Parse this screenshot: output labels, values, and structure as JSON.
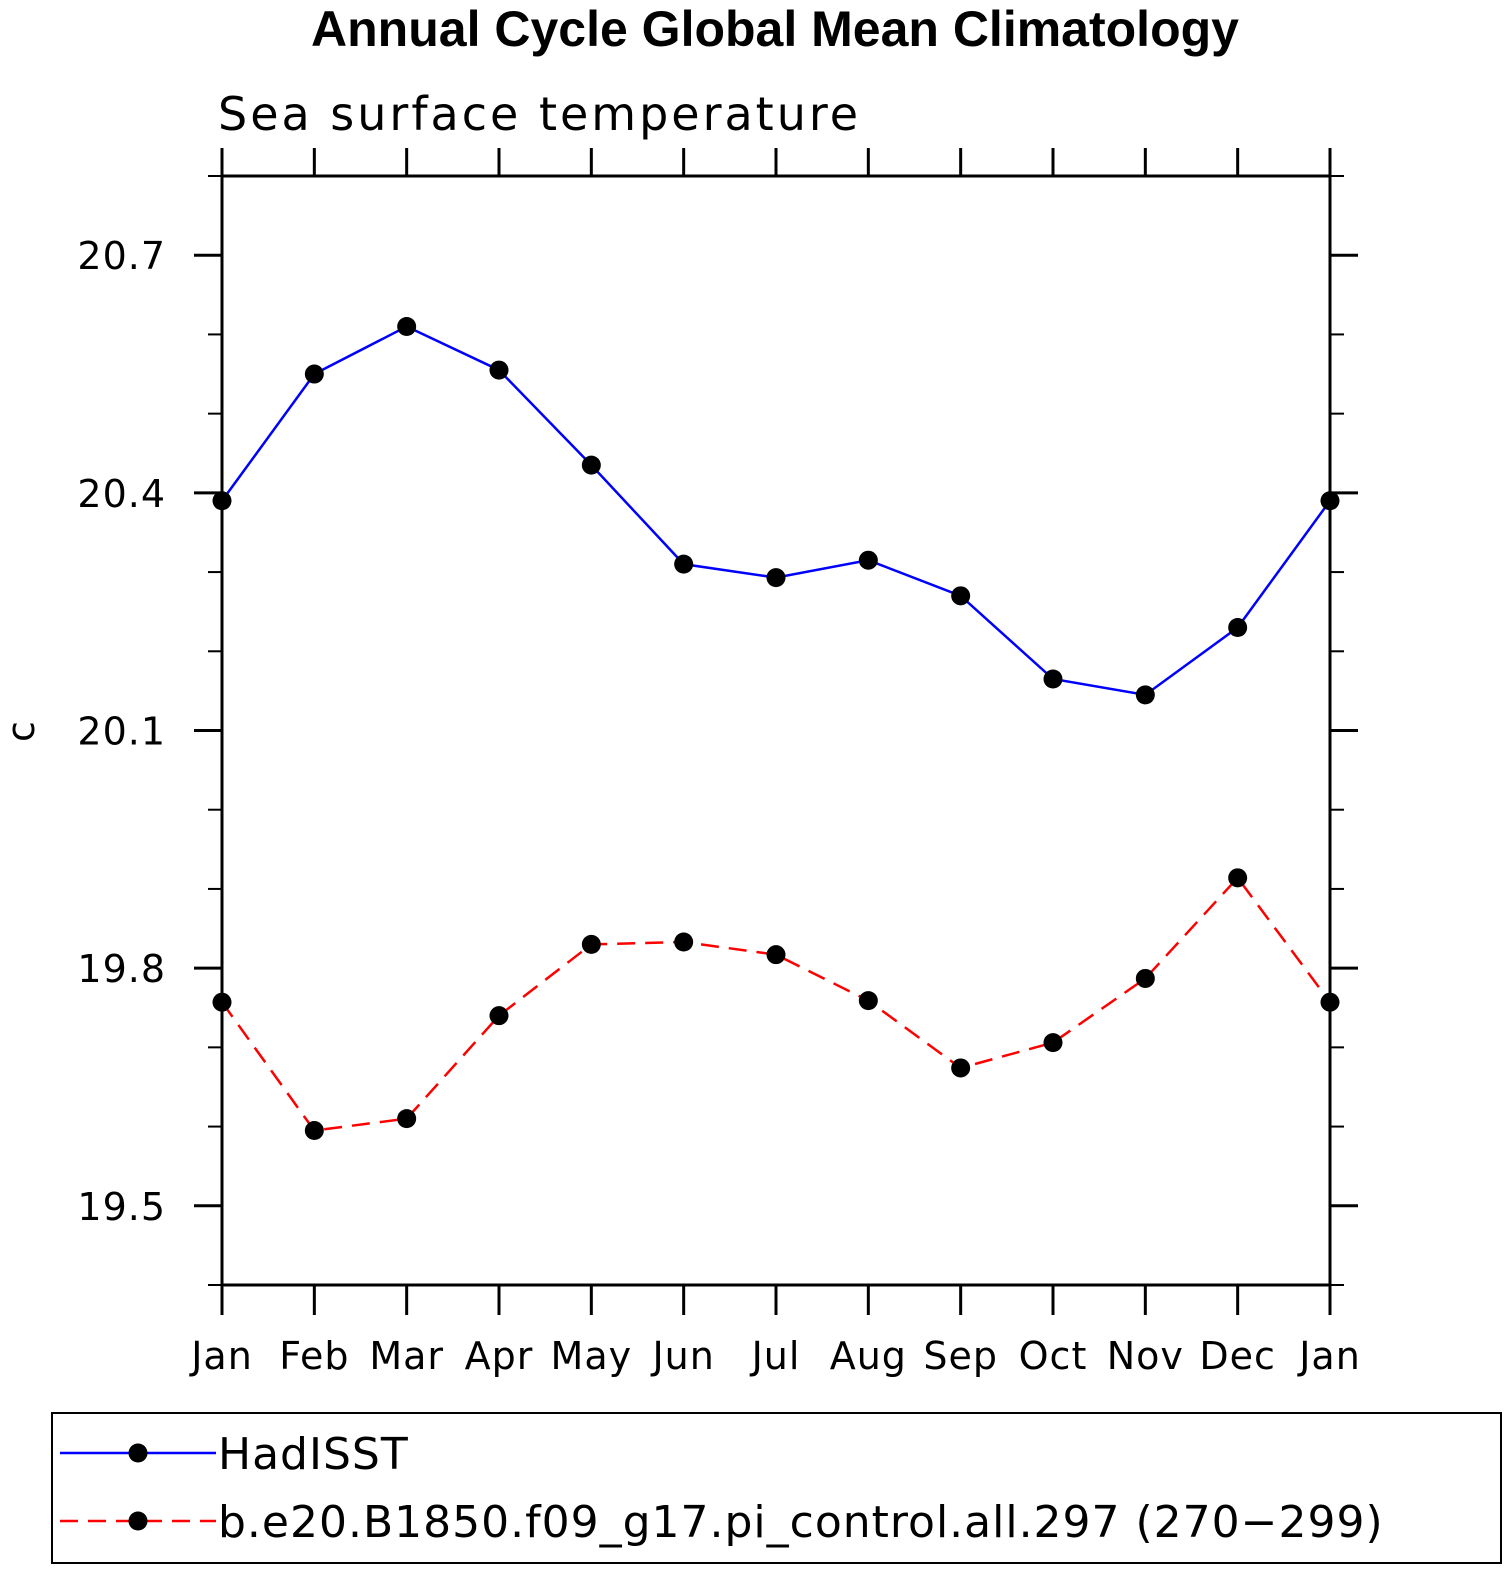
{
  "chart_data": {
    "type": "line",
    "title": "Annual Cycle Global Mean Climatology",
    "subtitle": "Sea surface temperature",
    "ylabel": "C",
    "xlabel": "",
    "categories": [
      "Jan",
      "Feb",
      "Mar",
      "Apr",
      "May",
      "Jun",
      "Jul",
      "Aug",
      "Sep",
      "Oct",
      "Nov",
      "Dec",
      "Jan"
    ],
    "ylim": [
      19.4,
      20.8
    ],
    "yticks_major": [
      "19.5",
      "19.8",
      "20.1",
      "20.4",
      "20.7"
    ],
    "yticks_minor_step": 0.1,
    "series": [
      {
        "name": "HadISST",
        "color": "#0000ff",
        "line_style": "solid",
        "marker": "filled-circle",
        "values": [
          20.39,
          20.55,
          20.61,
          20.555,
          20.435,
          20.31,
          20.293,
          20.315,
          20.27,
          20.165,
          20.145,
          20.23,
          20.39
        ]
      },
      {
        "name": "b.e20.B1850.f09_g17.pi_control.all.297 (270−299)",
        "color": "#ff0000",
        "line_style": "dashed",
        "marker": "filled-circle",
        "values": [
          19.757,
          19.595,
          19.61,
          19.74,
          19.83,
          19.833,
          19.817,
          19.759,
          19.674,
          19.706,
          19.787,
          19.914,
          19.757
        ]
      }
    ],
    "legend": "bottom, boxed",
    "grid": false
  }
}
